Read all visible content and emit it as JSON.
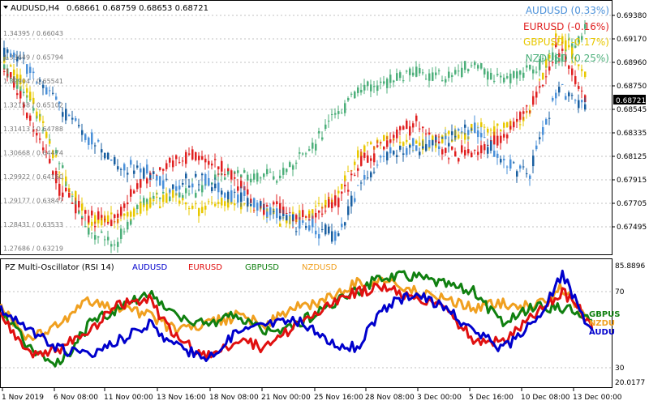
{
  "header": {
    "symbol_timeframe": "AUDUSD,H4",
    "ohlc": "0.68661 0.68759 0.68653 0.68721",
    "menu_arrow": "triangle-down-icon"
  },
  "main_legend": [
    {
      "label": "AUDUSD (0.33%)",
      "color": "#4a90d9"
    },
    {
      "label": "EURUSD (-0.16%)",
      "color": "#e02020"
    },
    {
      "label": "GBPUSD (-0.17%)",
      "color": "#e8c800"
    },
    {
      "label": "NZDUSD (0.25%)",
      "color": "#4caf7a"
    }
  ],
  "overlay_prices": [
    {
      "label": "1.34395 / 0.66043"
    },
    {
      "label": "1.33649 / 0.65794"
    },
    {
      "label": "1.32904 / 0.65541"
    },
    {
      "label": "1.32158 / 0.65102"
    },
    {
      "label": "1.31413 / 0.64788"
    },
    {
      "label": "1.30668 / 0.64474"
    },
    {
      "label": "1.29922 / 0.64160"
    },
    {
      "label": "1.29177 / 0.63847"
    },
    {
      "label": "1.28431 / 0.63533"
    },
    {
      "label": "1.27686 / 0.63219"
    }
  ],
  "price_axis": [
    "0.69380",
    "0.69170",
    "0.68960",
    "0.68750",
    "0.68545",
    "0.68335",
    "0.68125",
    "0.67915",
    "0.67705",
    "0.67495"
  ],
  "current_price": "0.68721",
  "oscillator": {
    "title": "PZ Multi-Oscillator (RSI 14)",
    "series_labels": [
      {
        "label": "AUDUSD",
        "color": "#0000cc"
      },
      {
        "label": "EURUSD",
        "color": "#e01010"
      },
      {
        "label": "GBPUSD",
        "color": "#108010"
      },
      {
        "label": "NZDUSD",
        "color": "#f0a020"
      }
    ],
    "axis": [
      "85.8896",
      "70",
      "30",
      "20.0177"
    ],
    "end_labels": [
      {
        "label": "GBPUS",
        "color": "#108010"
      },
      {
        "label": "NZDU",
        "color": "#f0a020"
      },
      {
        "label": "AUDU",
        "color": "#0000cc"
      }
    ]
  },
  "time_axis": [
    "1 Nov 2019",
    "6 Nov 08:00",
    "11 Nov 00:00",
    "13 Nov 16:00",
    "18 Nov 08:00",
    "21 Nov 00:00",
    "25 Nov 16:00",
    "28 Nov 08:00",
    "3 Dec 00:00",
    "5 Dec 16:00",
    "10 Dec 08:00",
    "13 Dec 00:00"
  ],
  "colors": {
    "audusd_bull": "#4a90d9",
    "audusd_bear": "#1a5fa0",
    "eurusd": "#e02020",
    "gbpusd": "#e8c800",
    "nzdusd": "#4caf7a",
    "grid": "#c0c0c0"
  }
}
